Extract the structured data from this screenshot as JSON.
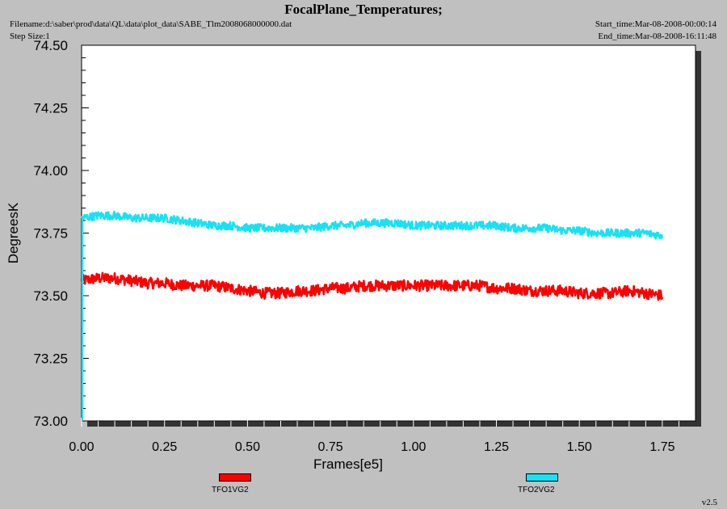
{
  "header": {
    "title": "FocalPlane_Temperatures;",
    "filename": "Filename:d:\\saber\\prod\\data\\QL\\data\\plot_data\\SABE_Tlm2008068000000.dat",
    "step_size": "Step Size:1",
    "start_time": "Start_time:Mar-08-2008-00:00:14",
    "end_time": "End_time:Mar-08-2008-16:11:48"
  },
  "version": "v2.5",
  "colors": {
    "background": "#c0c0c0",
    "plot_area": "#ffffff",
    "shadow": "#333333",
    "series_1": "#ff0000",
    "series_2": "#19e1f5"
  },
  "chart_data": {
    "type": "line",
    "title": "FocalPlane_Temperatures;",
    "xlabel": "Frames[e5]",
    "ylabel": "DegreesK",
    "xlim": [
      0.0,
      1.85
    ],
    "ylim": [
      73.0,
      74.5
    ],
    "x_ticks": [
      "0.00",
      "0.25",
      "0.50",
      "0.75",
      "1.00",
      "1.25",
      "1.50",
      "1.75"
    ],
    "y_ticks": [
      "73.00",
      "73.25",
      "73.50",
      "73.75",
      "74.00",
      "74.25",
      "74.50"
    ],
    "grid": false,
    "legend_position": "bottom",
    "series": [
      {
        "name": "TFO1VG2",
        "color": "#ff0000",
        "x": [
          0.0,
          0.05,
          0.1,
          0.15,
          0.2,
          0.25,
          0.3,
          0.35,
          0.4,
          0.45,
          0.5,
          0.55,
          0.6,
          0.65,
          0.7,
          0.75,
          0.8,
          0.85,
          0.9,
          0.95,
          1.0,
          1.05,
          1.1,
          1.15,
          1.2,
          1.25,
          1.3,
          1.35,
          1.4,
          1.45,
          1.5,
          1.55,
          1.6,
          1.65,
          1.7,
          1.75
        ],
        "y": [
          73.56,
          73.57,
          73.57,
          73.56,
          73.55,
          73.55,
          73.54,
          73.54,
          73.54,
          73.53,
          73.52,
          73.51,
          73.51,
          73.52,
          73.52,
          73.53,
          73.53,
          73.54,
          73.54,
          73.54,
          73.54,
          73.54,
          73.54,
          73.54,
          73.54,
          73.53,
          73.53,
          73.52,
          73.52,
          73.52,
          73.51,
          73.51,
          73.51,
          73.52,
          73.51,
          73.5
        ],
        "noise": 0.022
      },
      {
        "name": "TFO2VG2",
        "color": "#19e1f5",
        "x": [
          0.0,
          0.05,
          0.1,
          0.15,
          0.2,
          0.25,
          0.3,
          0.35,
          0.4,
          0.45,
          0.5,
          0.55,
          0.6,
          0.65,
          0.7,
          0.75,
          0.8,
          0.85,
          0.9,
          0.95,
          1.0,
          1.05,
          1.1,
          1.15,
          1.2,
          1.25,
          1.3,
          1.35,
          1.4,
          1.45,
          1.5,
          1.55,
          1.6,
          1.65,
          1.7,
          1.75
        ],
        "y": [
          73.81,
          73.82,
          73.82,
          73.81,
          73.81,
          73.81,
          73.8,
          73.79,
          73.78,
          73.78,
          73.77,
          73.77,
          73.77,
          73.77,
          73.77,
          73.78,
          73.78,
          73.79,
          73.79,
          73.79,
          73.78,
          73.78,
          73.78,
          73.78,
          73.78,
          73.78,
          73.77,
          73.77,
          73.77,
          73.76,
          73.76,
          73.75,
          73.75,
          73.75,
          73.75,
          73.74
        ],
        "noise": 0.016
      }
    ]
  }
}
